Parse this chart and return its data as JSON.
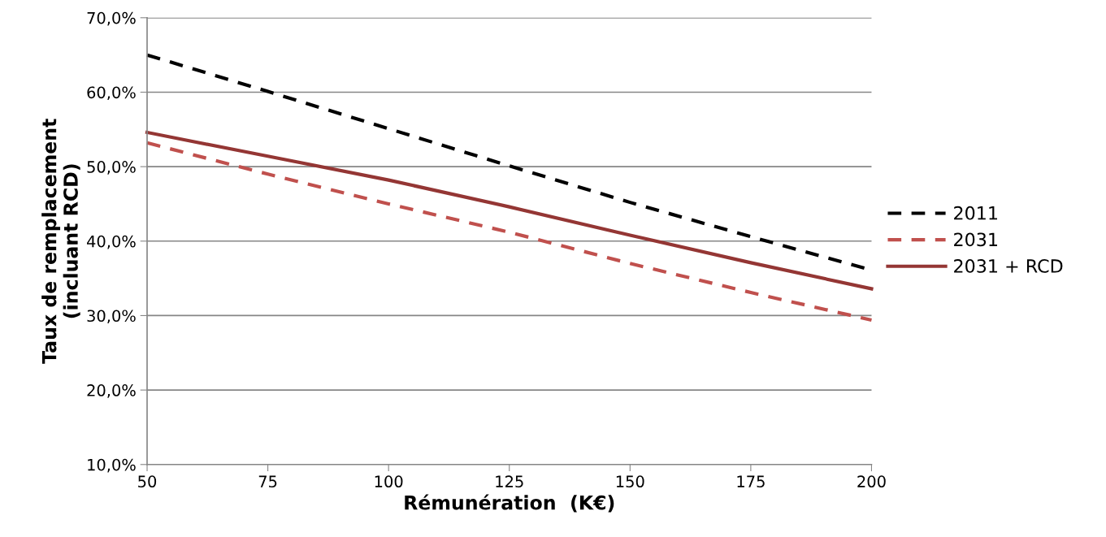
{
  "chart_data": {
    "type": "line",
    "xlabel": "Rémunération  (K€)",
    "ylabel": "Taux de remplacement\n(incluant RCD)",
    "x": [
      50,
      75,
      100,
      125,
      150,
      175,
      200
    ],
    "series": [
      {
        "name": "2011",
        "color": "#000000",
        "line_style": "dashed",
        "values": [
          65.0,
          60.1,
          55.1,
          50.1,
          45.2,
          40.6,
          36.1
        ]
      },
      {
        "name": "2031",
        "color": "#c0504d",
        "line_style": "dashed",
        "values": [
          53.2,
          49.0,
          45.0,
          41.2,
          37.0,
          33.1,
          29.4
        ]
      },
      {
        "name": "2031 + RCD",
        "color": "#943634",
        "line_style": "solid",
        "values": [
          54.6,
          51.4,
          48.2,
          44.6,
          40.8,
          37.1,
          33.6
        ]
      }
    ],
    "xlim": [
      50,
      200
    ],
    "xticks": [
      50,
      75,
      100,
      125,
      150,
      175,
      200
    ],
    "ylim": [
      10,
      70
    ],
    "yticks": [
      {
        "value": 10,
        "label": "10,0%"
      },
      {
        "value": 20,
        "label": "20,0%"
      },
      {
        "value": 30,
        "label": "30,0%"
      },
      {
        "value": 40,
        "label": "40,0%"
      },
      {
        "value": 50,
        "label": "50,0%"
      },
      {
        "value": 60,
        "label": "60,0%"
      },
      {
        "value": 70,
        "label": "70,0%"
      }
    ],
    "grid": "y",
    "legend": "right",
    "marker": "none"
  }
}
